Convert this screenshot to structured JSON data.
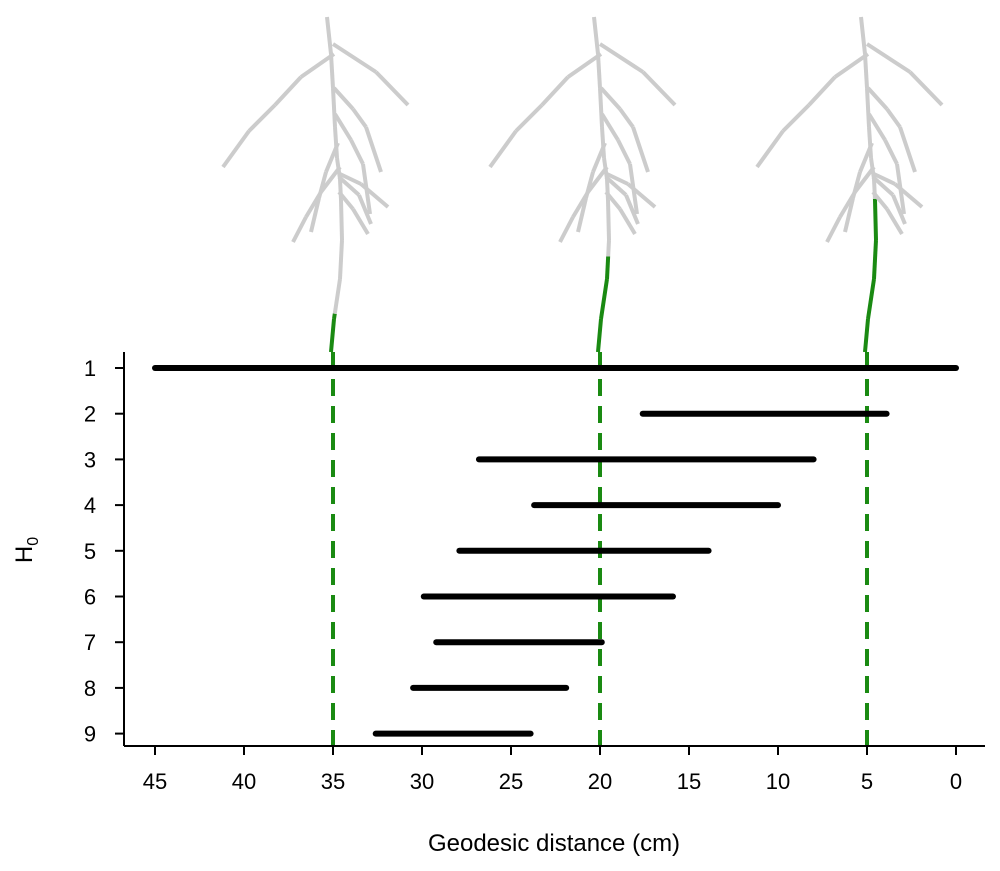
{
  "chart_data": {
    "type": "range-bar",
    "xlabel": "Geodesic distance (cm)",
    "ylabel_main": "H",
    "ylabel_sub": "0",
    "xlim": [
      47,
      -2
    ],
    "x_ticks": [
      45,
      40,
      35,
      30,
      25,
      20,
      15,
      10,
      5,
      0
    ],
    "categories": [
      "1",
      "2",
      "3",
      "4",
      "5",
      "6",
      "7",
      "8",
      "9"
    ],
    "intervals": [
      {
        "h0": "1",
        "from": 45.0,
        "to": 0.0
      },
      {
        "h0": "2",
        "from": 17.6,
        "to": 3.9
      },
      {
        "h0": "3",
        "from": 26.8,
        "to": 8.0
      },
      {
        "h0": "4",
        "from": 23.7,
        "to": 10.0
      },
      {
        "h0": "5",
        "from": 27.9,
        "to": 13.9
      },
      {
        "h0": "6",
        "from": 29.9,
        "to": 15.9
      },
      {
        "h0": "7",
        "from": 29.2,
        "to": 19.9
      },
      {
        "h0": "8",
        "from": 30.5,
        "to": 21.9
      },
      {
        "h0": "9",
        "from": 32.6,
        "to": 23.9
      }
    ],
    "marker_lines": [
      35,
      20,
      5
    ],
    "marker_color": "#1a8a12",
    "highlight_color": "#1a8a12",
    "base_color": "#cccccc",
    "root_thresholds": [
      35,
      20,
      5
    ]
  }
}
